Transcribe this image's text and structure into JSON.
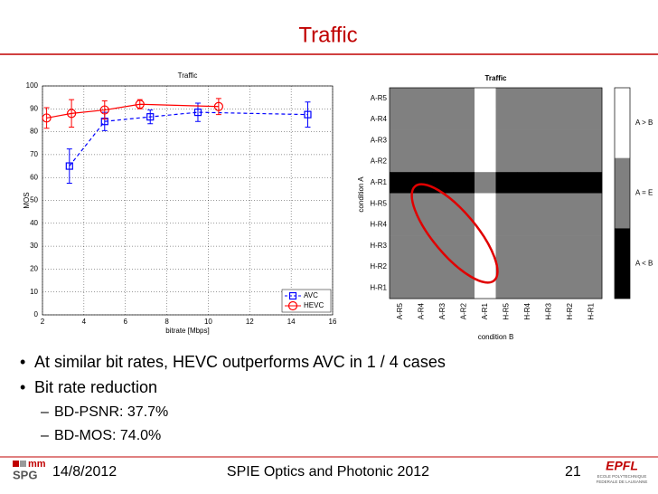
{
  "slide": {
    "title": "Traffic",
    "bullets": [
      {
        "text": "At similar bit rates, HEVC outperforms AVC in 1 / 4 cases"
      },
      {
        "text": "Bit rate reduction",
        "sub": [
          "BD-PSNR: 37.7%",
          "BD-MOS: 74.0%"
        ]
      }
    ],
    "footer": {
      "date": "14/8/2012",
      "event": "SPIE Optics and Photonic 2012",
      "page": "21",
      "logo_left": [
        "mm",
        "SPG"
      ],
      "logo_right": [
        "EPFL",
        "ECOLE POLYTECHNIQUE",
        "FEDERALE DE LAUSANNE"
      ]
    }
  },
  "chart_data": [
    {
      "type": "line",
      "title": "Traffic",
      "x_label": "bitrate [Mbps]",
      "y_label": "MOS",
      "xlim": [
        2,
        16
      ],
      "xticks": [
        2,
        4,
        6,
        8,
        10,
        12,
        14,
        16
      ],
      "ylim": [
        0,
        100
      ],
      "yticks": [
        0,
        10,
        20,
        30,
        40,
        50,
        60,
        70,
        80,
        90,
        100
      ],
      "grid": true,
      "legend": "lower right",
      "series": [
        {
          "name": "AVC",
          "color": "#0000ff",
          "marker": "square",
          "dash": true,
          "x": [
            3.3,
            5,
            7.2,
            9.5,
            14.8
          ],
          "values": [
            65,
            84.5,
            86.5,
            88.5,
            87.5
          ],
          "errors": [
            7.5,
            4,
            3,
            4,
            5.5
          ]
        },
        {
          "name": "HEVC",
          "color": "#ff0000",
          "marker": "circle",
          "dash": false,
          "x": [
            2.2,
            3.4,
            5,
            6.7,
            10.5
          ],
          "values": [
            86,
            88,
            89.5,
            92,
            91
          ],
          "errors": [
            4.5,
            6,
            4,
            2,
            3.5
          ]
        }
      ]
    },
    {
      "type": "heatmap",
      "title": "Traffic",
      "x_label": "condition B",
      "y_label": "condition A",
      "rows": [
        "A-R5",
        "A-R4",
        "A-R3",
        "A-R2",
        "A-R1",
        "H-R5",
        "H-R4",
        "H-R3",
        "H-R2",
        "H-R1"
      ],
      "columns": [
        "A-R5",
        "A-R4",
        "A-R3",
        "A-R2",
        "A-R1",
        "H-R5",
        "H-R4",
        "H-R3",
        "H-R2",
        "H-R1"
      ],
      "values": [
        [
          0,
          0,
          0,
          0,
          1,
          0,
          0,
          0,
          0,
          0
        ],
        [
          0,
          0,
          0,
          0,
          1,
          0,
          0,
          0,
          0,
          0
        ],
        [
          0,
          0,
          0,
          0,
          1,
          0,
          0,
          0,
          0,
          0
        ],
        [
          0,
          0,
          0,
          0,
          1,
          0,
          0,
          0,
          0,
          0
        ],
        [
          -1,
          -1,
          -1,
          -1,
          0,
          -1,
          -1,
          -1,
          -1,
          -1
        ],
        [
          0,
          0,
          0,
          0,
          1,
          0,
          0,
          0,
          0,
          0
        ],
        [
          0,
          0,
          0,
          0,
          1,
          0,
          0,
          0,
          0,
          0
        ],
        [
          0,
          0,
          0,
          0,
          1,
          0,
          0,
          0,
          0,
          0
        ],
        [
          0,
          0,
          0,
          0,
          1,
          0,
          0,
          0,
          0,
          0
        ],
        [
          0,
          0,
          0,
          0,
          1,
          0,
          0,
          0,
          0,
          0
        ]
      ],
      "colorbar": [
        {
          "value": 1,
          "label": "A > B",
          "color": "#ffffff"
        },
        {
          "value": 0,
          "label": "A = E",
          "color": "#808080"
        },
        {
          "value": -1,
          "label": "A < B",
          "color": "#000000"
        }
      ]
    }
  ]
}
